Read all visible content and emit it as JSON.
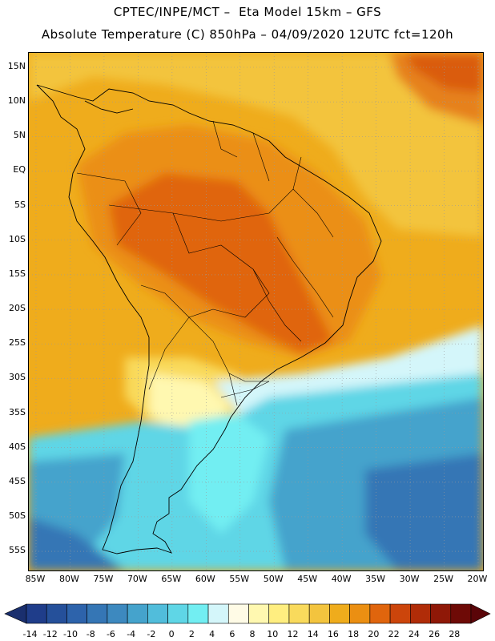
{
  "header": {
    "line1": "CPTEC/INPE/MCT –  Eta Model 15km – GFS",
    "line2": "Absolute Temperature (C) 850hPa – 04/09/2020 12UTC fct=120h"
  },
  "axes": {
    "lat_labels": [
      "15N",
      "10N",
      "5N",
      "EQ",
      "5S",
      "10S",
      "15S",
      "20S",
      "25S",
      "30S",
      "35S",
      "40S",
      "45S",
      "50S",
      "55S"
    ],
    "lon_labels": [
      "85W",
      "80W",
      "75W",
      "70W",
      "65W",
      "60W",
      "55W",
      "50W",
      "45W",
      "40W",
      "35W",
      "30W",
      "25W",
      "20W"
    ]
  },
  "colorbar": {
    "tick_labels": [
      "-14",
      "-12",
      "-10",
      "-8",
      "-6",
      "-4",
      "-2",
      "0",
      "2",
      "4",
      "6",
      "8",
      "10",
      "12",
      "14",
      "16",
      "18",
      "20",
      "22",
      "24",
      "26",
      "28"
    ],
    "colors": [
      "#1f3d8a",
      "#25509a",
      "#2d63ab",
      "#3576b5",
      "#3d89bf",
      "#45a3cc",
      "#51bddb",
      "#5fd6e6",
      "#72eef2",
      "#d4f6fa",
      "#fffbe6",
      "#fff8b0",
      "#ffee80",
      "#f9da5c",
      "#f3c43e",
      "#efac1c",
      "#eb8f12",
      "#e0650d",
      "#cc450b",
      "#b02c08",
      "#8f1807",
      "#6e0a06"
    ],
    "under_color": "#1a2f6e",
    "over_color": "#5a0508"
  }
}
